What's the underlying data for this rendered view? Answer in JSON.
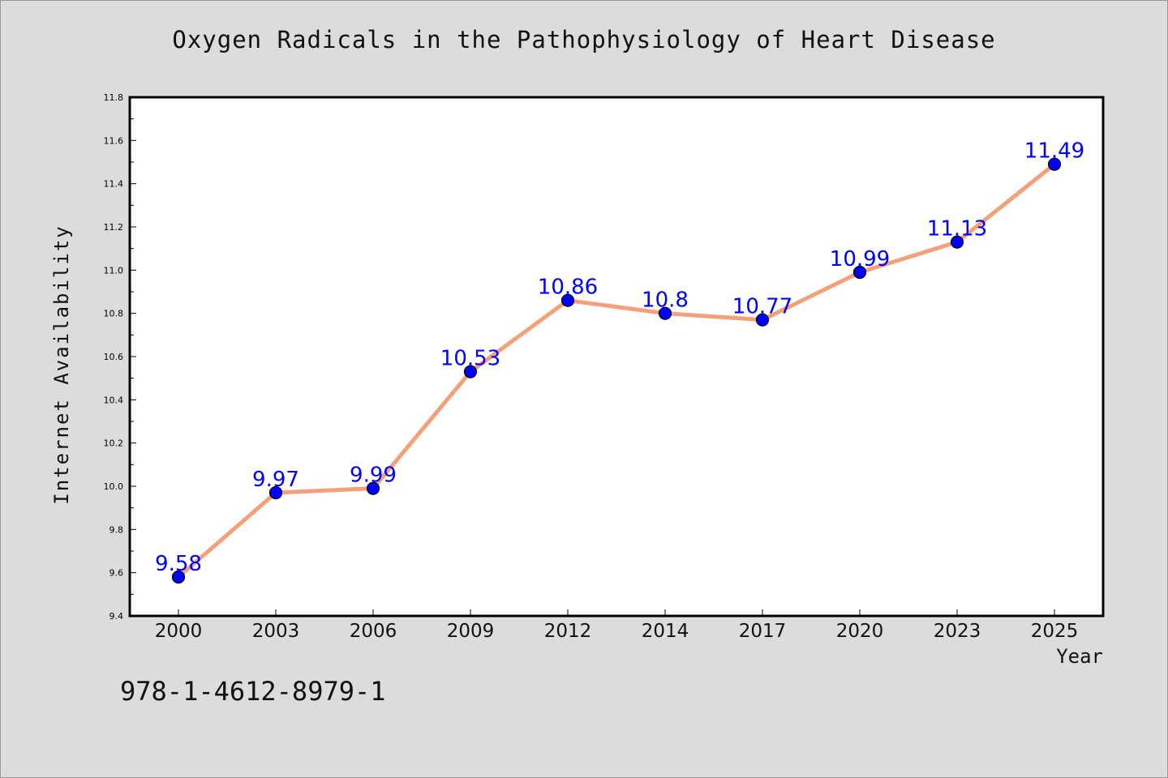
{
  "chart_data": {
    "type": "line",
    "title": "Oxygen Radicals in the Pathophysiology of Heart Disease",
    "xlabel": "Year",
    "ylabel": "Internet Availability",
    "categories": [
      "2000",
      "2003",
      "2006",
      "2009",
      "2012",
      "2014",
      "2017",
      "2020",
      "2023",
      "2025"
    ],
    "series": [
      {
        "values": [
          9.58,
          9.97,
          9.99,
          10.53,
          10.86,
          10.8,
          10.77,
          10.99,
          11.13,
          11.49
        ],
        "data_labels": [
          "9.58",
          "9.97",
          "9.99",
          "10.53",
          "10.86",
          "10.8",
          "10.77",
          "10.99",
          "11.13",
          "11.49"
        ]
      }
    ],
    "ylim": [
      9.4,
      11.8
    ],
    "yticks": [
      "9.4",
      "9.6",
      "9.8",
      "10.0",
      "10.2",
      "10.4",
      "10.6",
      "10.8",
      "11.0",
      "11.2",
      "11.4",
      "11.6",
      "11.8"
    ],
    "grid": false,
    "legend": "none",
    "colors": {
      "line": "#f4a07a",
      "marker": "#0000ff",
      "label": "#0000ff"
    }
  },
  "footer": {
    "isbn": "978-1-4612-8979-1"
  }
}
